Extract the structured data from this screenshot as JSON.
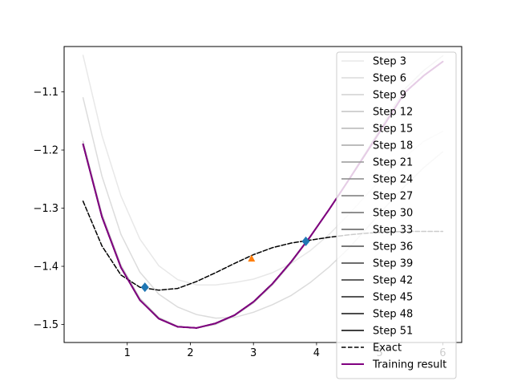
{
  "chart_data": {
    "type": "line",
    "title": "",
    "xlabel": "",
    "ylabel": "",
    "xlim": [
      0.0,
      6.3
    ],
    "ylim": [
      -1.531,
      -1.022
    ],
    "xticks": [
      1,
      2,
      3,
      4,
      5,
      6
    ],
    "xtick_labels": [
      "1",
      "2",
      "3",
      "4",
      "5",
      "6"
    ],
    "yticks": [
      -1.5,
      -1.4,
      -1.3,
      -1.2,
      -1.1
    ],
    "ytick_labels": [
      "−1.5",
      "−1.4",
      "−1.3",
      "−1.2",
      "−1.1"
    ],
    "grid": false,
    "legend_position": "top-right",
    "x": [
      0.3,
      0.6,
      0.9,
      1.2,
      1.5,
      1.8,
      2.1,
      2.4,
      2.7,
      3.0,
      3.3,
      3.6,
      3.9,
      4.2,
      4.5,
      4.8,
      5.1,
      5.4,
      5.7,
      6.0
    ],
    "series": [
      {
        "name": "Step 3",
        "color": "#e8e8e8",
        "style": "solid",
        "values": [
          -1.037,
          -1.175,
          -1.279,
          -1.353,
          -1.399,
          -1.423,
          -1.432,
          -1.432,
          -1.428,
          -1.422,
          -1.411,
          -1.395,
          -1.373,
          -1.345,
          -1.312,
          -1.276,
          -1.241,
          -1.212,
          -1.185,
          -1.168
        ]
      },
      {
        "name": "Step 6",
        "color": "#dcdcdc",
        "style": "solid",
        "values": [
          -1.11,
          -1.245,
          -1.345,
          -1.41,
          -1.448,
          -1.47,
          -1.483,
          -1.489,
          -1.488,
          -1.479,
          -1.466,
          -1.45,
          -1.428,
          -1.401,
          -1.37,
          -1.334,
          -1.297,
          -1.262,
          -1.23,
          -1.203
        ]
      },
      {
        "name": "Step 9",
        "color": "#d0d0d0",
        "style": "solid",
        "values": [
          -1.185,
          -1.31,
          -1.398,
          -1.455,
          -1.488,
          -1.503,
          -1.506,
          -1.5,
          -1.485,
          -1.463,
          -1.432,
          -1.394,
          -1.35,
          -1.302,
          -1.252,
          -1.2,
          -1.147,
          -1.095,
          -1.063,
          -1.038
        ]
      },
      {
        "name": "Step 12",
        "color": "#c4c4c4",
        "style": "solid",
        "values": [
          -1.19,
          -1.315,
          -1.402,
          -1.458,
          -1.49,
          -1.504,
          -1.506,
          -1.498,
          -1.484,
          -1.461,
          -1.43,
          -1.392,
          -1.349,
          -1.302,
          -1.253,
          -1.203,
          -1.152,
          -1.101,
          -1.072,
          -1.048
        ]
      },
      {
        "name": "Step 15",
        "color": "#b5b5b5",
        "style": "solid",
        "values": [
          -1.19,
          -1.315,
          -1.402,
          -1.458,
          -1.49,
          -1.504,
          -1.506,
          -1.498,
          -1.484,
          -1.461,
          -1.43,
          -1.392,
          -1.349,
          -1.302,
          -1.253,
          -1.203,
          -1.152,
          -1.101,
          -1.072,
          -1.048
        ]
      },
      {
        "name": "Step 18",
        "color": "#a6a6a6",
        "style": "solid",
        "values": [
          -1.19,
          -1.315,
          -1.402,
          -1.458,
          -1.49,
          -1.504,
          -1.506,
          -1.498,
          -1.484,
          -1.461,
          -1.43,
          -1.392,
          -1.349,
          -1.302,
          -1.253,
          -1.203,
          -1.152,
          -1.101,
          -1.072,
          -1.048
        ]
      },
      {
        "name": "Step 21",
        "color": "#979797",
        "style": "solid",
        "values": [
          -1.19,
          -1.315,
          -1.402,
          -1.458,
          -1.49,
          -1.504,
          -1.506,
          -1.498,
          -1.484,
          -1.461,
          -1.43,
          -1.392,
          -1.349,
          -1.302,
          -1.253,
          -1.203,
          -1.152,
          -1.101,
          -1.072,
          -1.048
        ]
      },
      {
        "name": "Step 24",
        "color": "#888888",
        "style": "solid",
        "values": [
          -1.19,
          -1.315,
          -1.402,
          -1.458,
          -1.49,
          -1.504,
          -1.506,
          -1.498,
          -1.484,
          -1.461,
          -1.43,
          -1.392,
          -1.349,
          -1.302,
          -1.253,
          -1.203,
          -1.152,
          -1.101,
          -1.072,
          -1.048
        ]
      },
      {
        "name": "Step 27",
        "color": "#797979",
        "style": "solid",
        "values": [
          -1.19,
          -1.315,
          -1.402,
          -1.458,
          -1.49,
          -1.504,
          -1.506,
          -1.498,
          -1.484,
          -1.461,
          -1.43,
          -1.392,
          -1.349,
          -1.302,
          -1.253,
          -1.203,
          -1.152,
          -1.101,
          -1.072,
          -1.048
        ]
      },
      {
        "name": "Step 30",
        "color": "#6a6a6a",
        "style": "solid",
        "values": [
          -1.19,
          -1.315,
          -1.402,
          -1.458,
          -1.49,
          -1.504,
          -1.506,
          -1.498,
          -1.484,
          -1.461,
          -1.43,
          -1.392,
          -1.349,
          -1.302,
          -1.253,
          -1.203,
          -1.152,
          -1.101,
          -1.072,
          -1.048
        ]
      },
      {
        "name": "Step 33",
        "color": "#5b5b5b",
        "style": "solid",
        "values": [
          -1.19,
          -1.315,
          -1.402,
          -1.458,
          -1.49,
          -1.504,
          -1.506,
          -1.498,
          -1.484,
          -1.461,
          -1.43,
          -1.392,
          -1.349,
          -1.302,
          -1.253,
          -1.203,
          -1.152,
          -1.101,
          -1.072,
          -1.048
        ]
      },
      {
        "name": "Step 36",
        "color": "#4c4c4c",
        "style": "solid",
        "values": [
          -1.19,
          -1.315,
          -1.402,
          -1.458,
          -1.49,
          -1.504,
          -1.506,
          -1.498,
          -1.484,
          -1.461,
          -1.43,
          -1.392,
          -1.349,
          -1.302,
          -1.253,
          -1.203,
          -1.152,
          -1.101,
          -1.072,
          -1.048
        ]
      },
      {
        "name": "Step 39",
        "color": "#3d3d3d",
        "style": "solid",
        "values": [
          -1.19,
          -1.315,
          -1.402,
          -1.458,
          -1.49,
          -1.504,
          -1.506,
          -1.498,
          -1.484,
          -1.461,
          -1.43,
          -1.392,
          -1.349,
          -1.302,
          -1.253,
          -1.203,
          -1.152,
          -1.101,
          -1.072,
          -1.048
        ]
      },
      {
        "name": "Step 42",
        "color": "#2e2e2e",
        "style": "solid",
        "values": [
          -1.19,
          -1.315,
          -1.402,
          -1.458,
          -1.49,
          -1.504,
          -1.506,
          -1.498,
          -1.484,
          -1.461,
          -1.43,
          -1.392,
          -1.349,
          -1.302,
          -1.253,
          -1.203,
          -1.152,
          -1.101,
          -1.072,
          -1.048
        ]
      },
      {
        "name": "Step 45",
        "color": "#1f1f1f",
        "style": "solid",
        "values": [
          -1.19,
          -1.315,
          -1.402,
          -1.458,
          -1.49,
          -1.504,
          -1.506,
          -1.498,
          -1.484,
          -1.461,
          -1.43,
          -1.392,
          -1.349,
          -1.302,
          -1.253,
          -1.203,
          -1.152,
          -1.101,
          -1.072,
          -1.048
        ]
      },
      {
        "name": "Step 48",
        "color": "#101010",
        "style": "solid",
        "values": [
          -1.19,
          -1.315,
          -1.402,
          -1.458,
          -1.49,
          -1.504,
          -1.506,
          -1.498,
          -1.484,
          -1.461,
          -1.43,
          -1.392,
          -1.349,
          -1.302,
          -1.253,
          -1.203,
          -1.152,
          -1.101,
          -1.072,
          -1.048
        ]
      },
      {
        "name": "Step 51",
        "color": "#000000",
        "style": "solid",
        "values": [
          -1.19,
          -1.315,
          -1.402,
          -1.458,
          -1.49,
          -1.504,
          -1.506,
          -1.498,
          -1.484,
          -1.461,
          -1.43,
          -1.392,
          -1.349,
          -1.302,
          -1.253,
          -1.203,
          -1.152,
          -1.101,
          -1.072,
          -1.048
        ]
      },
      {
        "name": "Exact",
        "color": "#000000",
        "style": "dashed",
        "values": [
          -1.288,
          -1.365,
          -1.415,
          -1.436,
          -1.441,
          -1.438,
          -1.426,
          -1.411,
          -1.395,
          -1.38,
          -1.368,
          -1.36,
          -1.355,
          -1.35,
          -1.346,
          -1.343,
          -1.341,
          -1.34,
          -1.34,
          -1.34
        ]
      },
      {
        "name": "Training result",
        "color": "#800080",
        "style": "solid",
        "values": [
          -1.19,
          -1.315,
          -1.402,
          -1.458,
          -1.49,
          -1.504,
          -1.506,
          -1.498,
          -1.484,
          -1.461,
          -1.43,
          -1.392,
          -1.349,
          -1.302,
          -1.253,
          -1.203,
          -1.152,
          -1.101,
          -1.072,
          -1.048
        ]
      }
    ],
    "markers": [
      {
        "shape": "diamond",
        "color": "#1f77b4",
        "x": 1.28,
        "y": -1.436
      },
      {
        "shape": "diamond",
        "color": "#1f77b4",
        "x": 3.83,
        "y": -1.357
      },
      {
        "shape": "triangle",
        "color": "#ff7f0e",
        "x": 2.97,
        "y": -1.387
      }
    ]
  }
}
